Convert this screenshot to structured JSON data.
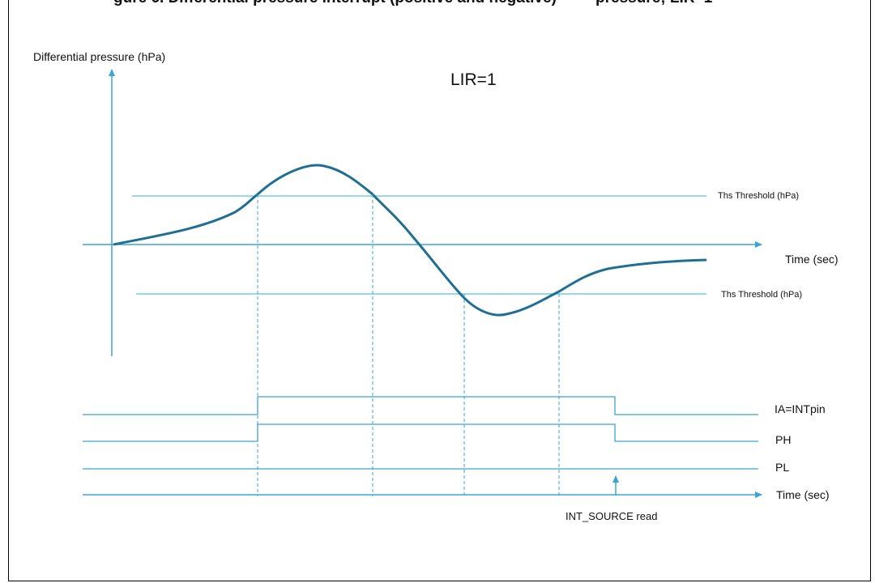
{
  "header": {
    "truncated_left": "gure 6. Differential pressure interrupt (positive and negative)",
    "truncated_right": "pressure; LIR=1"
  },
  "diagram": {
    "y_axis_label": "Differential pressure (hPa)",
    "mode_label": "LIR=1",
    "upper_threshold_label": "Ths Threshold (hPa)",
    "lower_threshold_label": "Ths Threshold (hPa)",
    "time_axis_label_top": "Time (sec)",
    "signal_ia_label": "IA=INTpin",
    "signal_ph_label": "PH",
    "signal_pl_label": "PL",
    "time_axis_label_bottom": "Time (sec)",
    "int_source_label": "INT_SOURCE read"
  },
  "colors": {
    "curve": "#1f6f94",
    "threshold": "#5bbfe0",
    "axis": "#3aa5d6",
    "signal": "#3aa5d6"
  }
}
